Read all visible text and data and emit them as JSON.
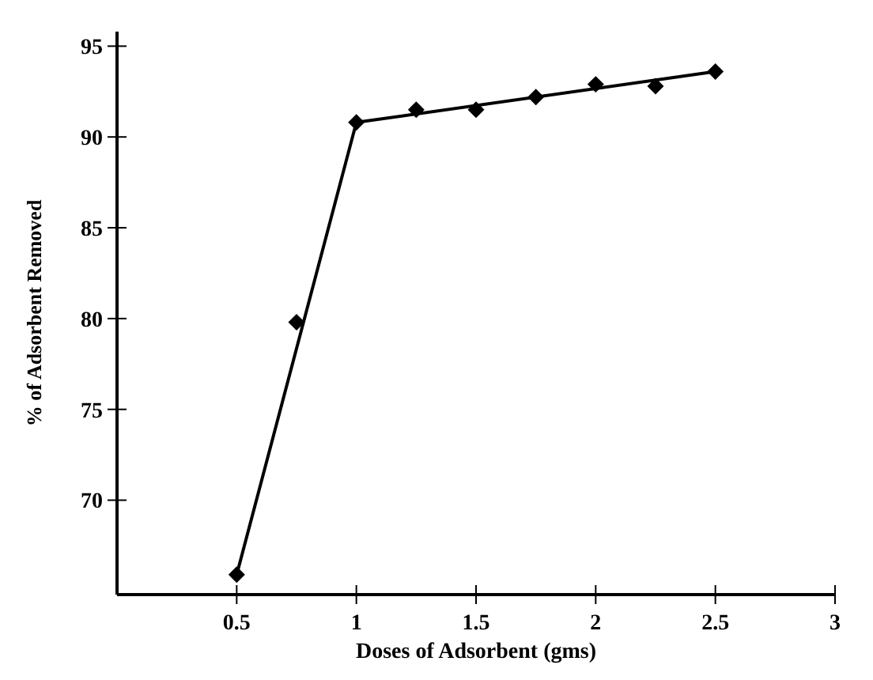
{
  "chart_data": {
    "type": "scatter",
    "xlabel": "Doses of Adsorbent (gms)",
    "ylabel": "% of Adsorbent Removed",
    "xlim": [
      0,
      3
    ],
    "xticks": [
      0.5,
      1,
      1.5,
      2,
      2.5,
      3
    ],
    "ylim": [
      64.8,
      95.8
    ],
    "yticks": [
      70,
      75,
      80,
      85,
      90,
      95
    ],
    "grid": false,
    "series": [
      {
        "type": "line",
        "color": "#000000",
        "marker": "none",
        "line_style": "solid",
        "x": [
          0.5,
          1,
          2.5
        ],
        "values": [
          65.9,
          90.8,
          93.6
        ]
      },
      {
        "color": "#000000",
        "marker": "diamond",
        "x": [
          0.5,
          0.75,
          1,
          1.25,
          1.5,
          1.75,
          2,
          2.25,
          2.5
        ],
        "values": [
          65.9,
          79.8,
          90.8,
          91.5,
          91.5,
          92.2,
          92.9,
          92.8,
          93.6
        ]
      }
    ]
  }
}
